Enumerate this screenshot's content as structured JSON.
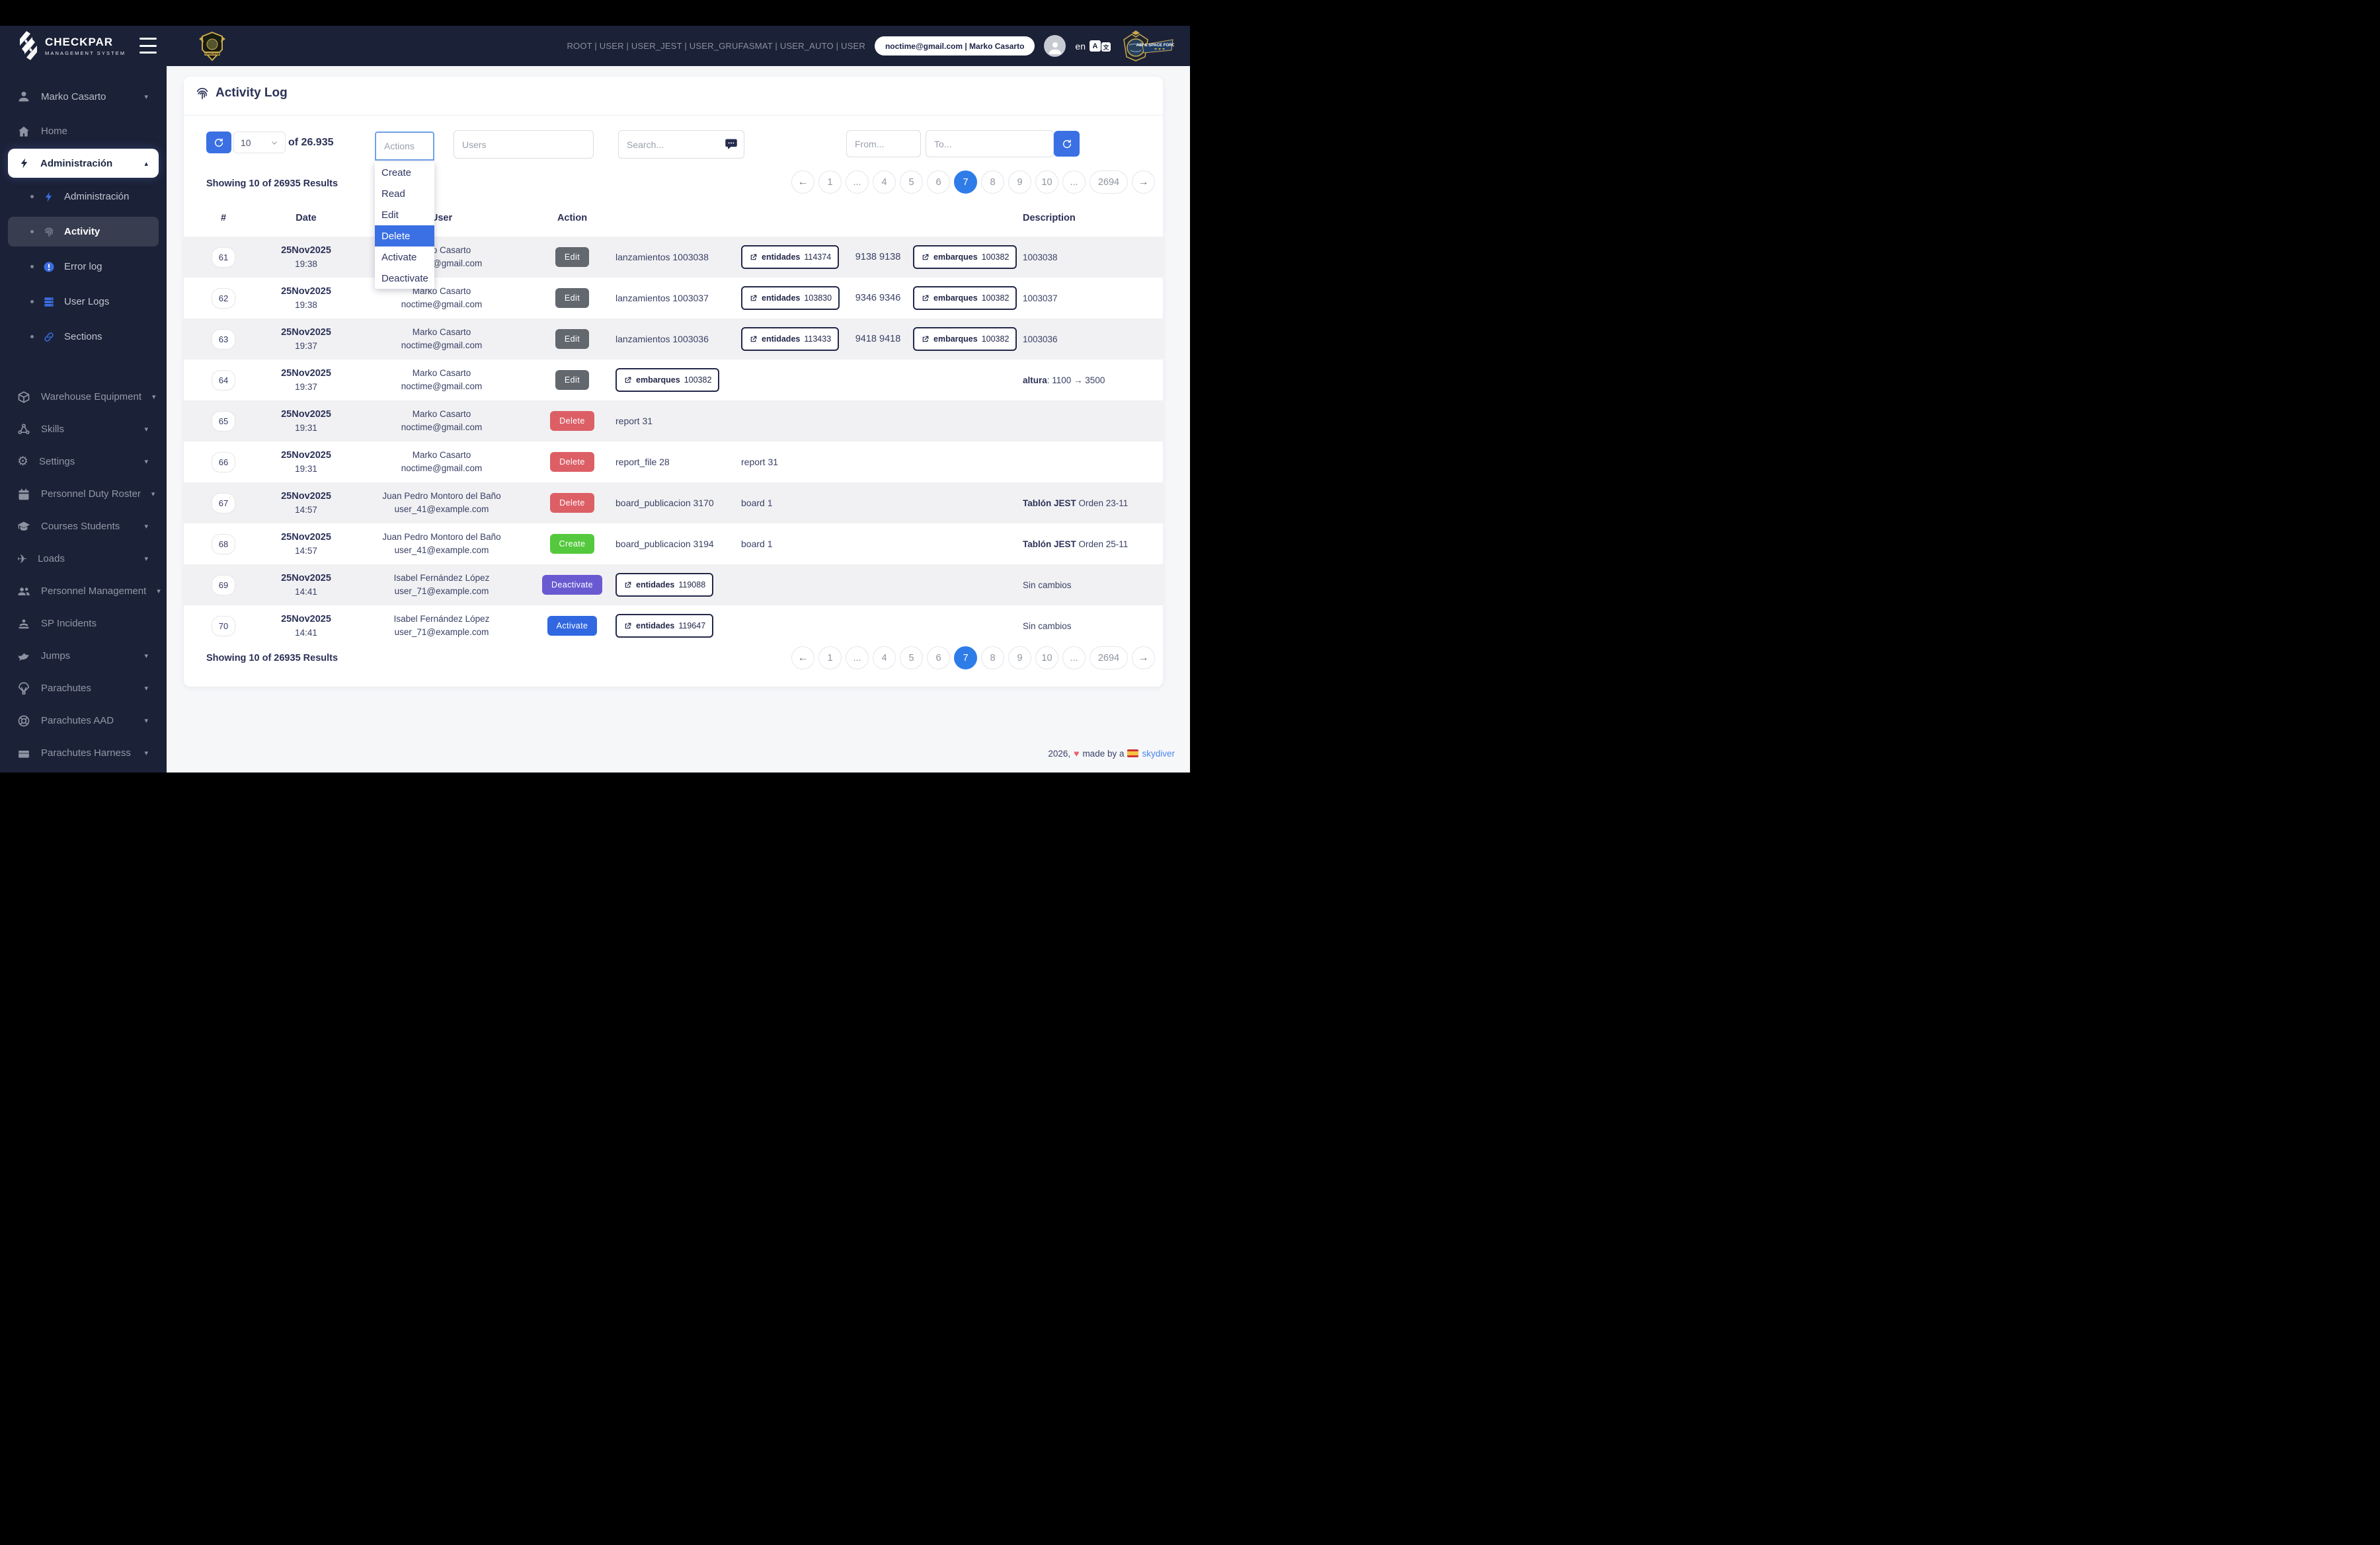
{
  "colors": {
    "accent": "#3a70e3",
    "navy": "#1b2137",
    "badges": {
      "edit": "#63676e",
      "delete": "#dd5f66",
      "create": "#55c93d",
      "deactivate": "#6a5ad1",
      "activate": "#3168e1"
    }
  },
  "header": {
    "brand_name": "CHECKPAR",
    "brand_subtitle": "MANAGEMENT SYSTEM",
    "roles": "ROOT | USER | USER_JEST | USER_GRUFASMAT | USER_AUTO | USER",
    "user_pill": "noctime@gmail.com | Marko Casarto",
    "language": "en",
    "right_logo_text": "AIR & SPACE FORCE"
  },
  "sidebar": {
    "user": {
      "label": "Marko Casarto",
      "icon": "person",
      "caret": "down"
    },
    "items": [
      {
        "kind": "item",
        "label": "Home",
        "icon": "home"
      },
      {
        "kind": "active",
        "label": "Administración",
        "icon": "bolt",
        "caret": "up"
      },
      {
        "kind": "sub",
        "label": "Administración",
        "icon": "bolt",
        "icon_class": "icon-blue"
      },
      {
        "kind": "sub-active",
        "label": "Activity",
        "icon": "fingerprint",
        "icon_class": "icon-dim"
      },
      {
        "kind": "sub",
        "label": "Error log",
        "icon": "error",
        "icon_class": "icon-blue"
      },
      {
        "kind": "sub",
        "label": "User Logs",
        "icon": "server",
        "icon_class": "icon-blue"
      },
      {
        "kind": "sub",
        "label": "Sections",
        "icon": "link",
        "icon_class": "icon-blue",
        "gap_after": true
      },
      {
        "kind": "item",
        "label": "Warehouse Equipment",
        "icon": "box",
        "caret": "down"
      },
      {
        "kind": "item",
        "label": "Skills",
        "icon": "nodes",
        "caret": "down"
      },
      {
        "kind": "item",
        "label": "Settings",
        "icon": "gear",
        "caret": "down"
      },
      {
        "kind": "item",
        "label": "Personnel Duty Roster",
        "icon": "calendar",
        "caret": "down"
      },
      {
        "kind": "item",
        "label": "Courses Students",
        "icon": "grad",
        "caret": "down"
      },
      {
        "kind": "item",
        "label": "Loads",
        "icon": "plane",
        "caret": "down"
      },
      {
        "kind": "item",
        "label": "Personnel Management",
        "icon": "users",
        "caret": "down"
      },
      {
        "kind": "item",
        "label": "SP Incidents",
        "icon": "incident"
      },
      {
        "kind": "item",
        "label": "Jumps",
        "icon": "bird",
        "caret": "down"
      },
      {
        "kind": "item",
        "label": "Parachutes",
        "icon": "parachute",
        "caret": "down"
      },
      {
        "kind": "item",
        "label": "Parachutes AAD",
        "icon": "lifering",
        "caret": "down"
      },
      {
        "kind": "item",
        "label": "Parachutes Harness",
        "icon": "briefcase",
        "caret": "down"
      }
    ]
  },
  "page": {
    "title": "Activity Log",
    "per_page": "10",
    "total_label": "of 26.935",
    "actions_placeholder": "Actions",
    "users_placeholder": "Users",
    "search_placeholder": "Search...",
    "from_placeholder": "From...",
    "to_placeholder": "To...",
    "showing": "Showing 10 of 26935 Results"
  },
  "dropdown": {
    "items": [
      "Create",
      "Read",
      "Edit",
      "Delete",
      "Activate",
      "Deactivate"
    ],
    "selected": "Delete"
  },
  "pagination": {
    "items": [
      "1",
      "...",
      "4",
      "5",
      "6",
      "7",
      "8",
      "9",
      "10",
      "...",
      "2694"
    ],
    "active": "7",
    "prev": "←",
    "next": "→"
  },
  "table": {
    "headers": {
      "num": "#",
      "date": "Date",
      "user": "User",
      "action": "Action",
      "description": "Description"
    },
    "rows": [
      {
        "num": "61",
        "date": "25Nov2025",
        "time": "19:38",
        "user": "Marko Casarto",
        "email": "noctime@gmail.com",
        "action": {
          "label": "Edit",
          "type": "edit"
        },
        "c5": {
          "kind": "text",
          "text": "lanzamientos 1003038"
        },
        "c6": {
          "kind": "button",
          "label": "entidades",
          "value": "114374"
        },
        "c7": "9138 9138",
        "c8": {
          "kind": "button",
          "label": "embarques",
          "value": "100382"
        },
        "desc": {
          "bold": "",
          "text": "1003038"
        }
      },
      {
        "num": "62",
        "date": "25Nov2025",
        "time": "19:38",
        "user": "Marko Casarto",
        "email": "noctime@gmail.com",
        "action": {
          "label": "Edit",
          "type": "edit"
        },
        "c5": {
          "kind": "text",
          "text": "lanzamientos 1003037"
        },
        "c6": {
          "kind": "button",
          "label": "entidades",
          "value": "103830"
        },
        "c7": "9346 9346",
        "c8": {
          "kind": "button",
          "label": "embarques",
          "value": "100382"
        },
        "desc": {
          "bold": "",
          "text": "1003037"
        }
      },
      {
        "num": "63",
        "date": "25Nov2025",
        "time": "19:37",
        "user": "Marko Casarto",
        "email": "noctime@gmail.com",
        "action": {
          "label": "Edit",
          "type": "edit"
        },
        "c5": {
          "kind": "text",
          "text": "lanzamientos 1003036"
        },
        "c6": {
          "kind": "button",
          "label": "entidades",
          "value": "113433"
        },
        "c7": "9418 9418",
        "c8": {
          "kind": "button",
          "label": "embarques",
          "value": "100382"
        },
        "desc": {
          "bold": "",
          "text": "1003036"
        }
      },
      {
        "num": "64",
        "date": "25Nov2025",
        "time": "19:37",
        "user": "Marko Casarto",
        "email": "noctime@gmail.com",
        "action": {
          "label": "Edit",
          "type": "edit"
        },
        "c5": {
          "kind": "button",
          "label": "embarques",
          "value": "100382"
        },
        "c6": {
          "kind": "none"
        },
        "c7": "",
        "c8": {
          "kind": "none"
        },
        "desc": {
          "bold": "altura",
          "text": ": 1100 → 3500"
        }
      },
      {
        "num": "65",
        "date": "25Nov2025",
        "time": "19:31",
        "user": "Marko Casarto",
        "email": "noctime@gmail.com",
        "action": {
          "label": "Delete",
          "type": "delete"
        },
        "c5": {
          "kind": "text",
          "text": "report 31"
        },
        "c6": {
          "kind": "none"
        },
        "c7": "",
        "c8": {
          "kind": "none"
        },
        "desc": {
          "bold": "",
          "text": ""
        }
      },
      {
        "num": "66",
        "date": "25Nov2025",
        "time": "19:31",
        "user": "Marko Casarto",
        "email": "noctime@gmail.com",
        "action": {
          "label": "Delete",
          "type": "delete"
        },
        "c5": {
          "kind": "text",
          "text": "report_file 28"
        },
        "c6": {
          "kind": "text",
          "text": "report 31"
        },
        "c7": "",
        "c8": {
          "kind": "none"
        },
        "desc": {
          "bold": "",
          "text": ""
        }
      },
      {
        "num": "67",
        "date": "25Nov2025",
        "time": "14:57",
        "user": "Juan Pedro Montoro del Baño",
        "email": "user_41@example.com",
        "action": {
          "label": "Delete",
          "type": "delete"
        },
        "c5": {
          "kind": "text",
          "text": "board_publicacion 3170"
        },
        "c6": {
          "kind": "text",
          "text": "board 1"
        },
        "c7": "",
        "c8": {
          "kind": "none"
        },
        "desc": {
          "bold": "Tablón JEST",
          "text": " Orden 23-11"
        }
      },
      {
        "num": "68",
        "date": "25Nov2025",
        "time": "14:57",
        "user": "Juan Pedro Montoro del Baño",
        "email": "user_41@example.com",
        "action": {
          "label": "Create",
          "type": "create"
        },
        "c5": {
          "kind": "text",
          "text": "board_publicacion 3194"
        },
        "c6": {
          "kind": "text",
          "text": "board 1"
        },
        "c7": "",
        "c8": {
          "kind": "none"
        },
        "desc": {
          "bold": "Tablón JEST",
          "text": " Orden 25-11"
        }
      },
      {
        "num": "69",
        "date": "25Nov2025",
        "time": "14:41",
        "user": "Isabel Fernández López",
        "email": "user_71@example.com",
        "action": {
          "label": "Deactivate",
          "type": "deactivate"
        },
        "c5": {
          "kind": "button",
          "label": "entidades",
          "value": "119088"
        },
        "c6": {
          "kind": "none"
        },
        "c7": "",
        "c8": {
          "kind": "none"
        },
        "desc": {
          "bold": "",
          "text": "Sin cambios"
        }
      },
      {
        "num": "70",
        "date": "25Nov2025",
        "time": "14:41",
        "user": "Isabel Fernández López",
        "email": "user_71@example.com",
        "action": {
          "label": "Activate",
          "type": "activate"
        },
        "c5": {
          "kind": "button",
          "label": "entidades",
          "value": "119647"
        },
        "c6": {
          "kind": "none"
        },
        "c7": "",
        "c8": {
          "kind": "none"
        },
        "desc": {
          "bold": "",
          "text": "Sin cambios"
        }
      }
    ]
  },
  "footer": {
    "year": "2026,",
    "made": "made by a",
    "link": "skydiver"
  }
}
